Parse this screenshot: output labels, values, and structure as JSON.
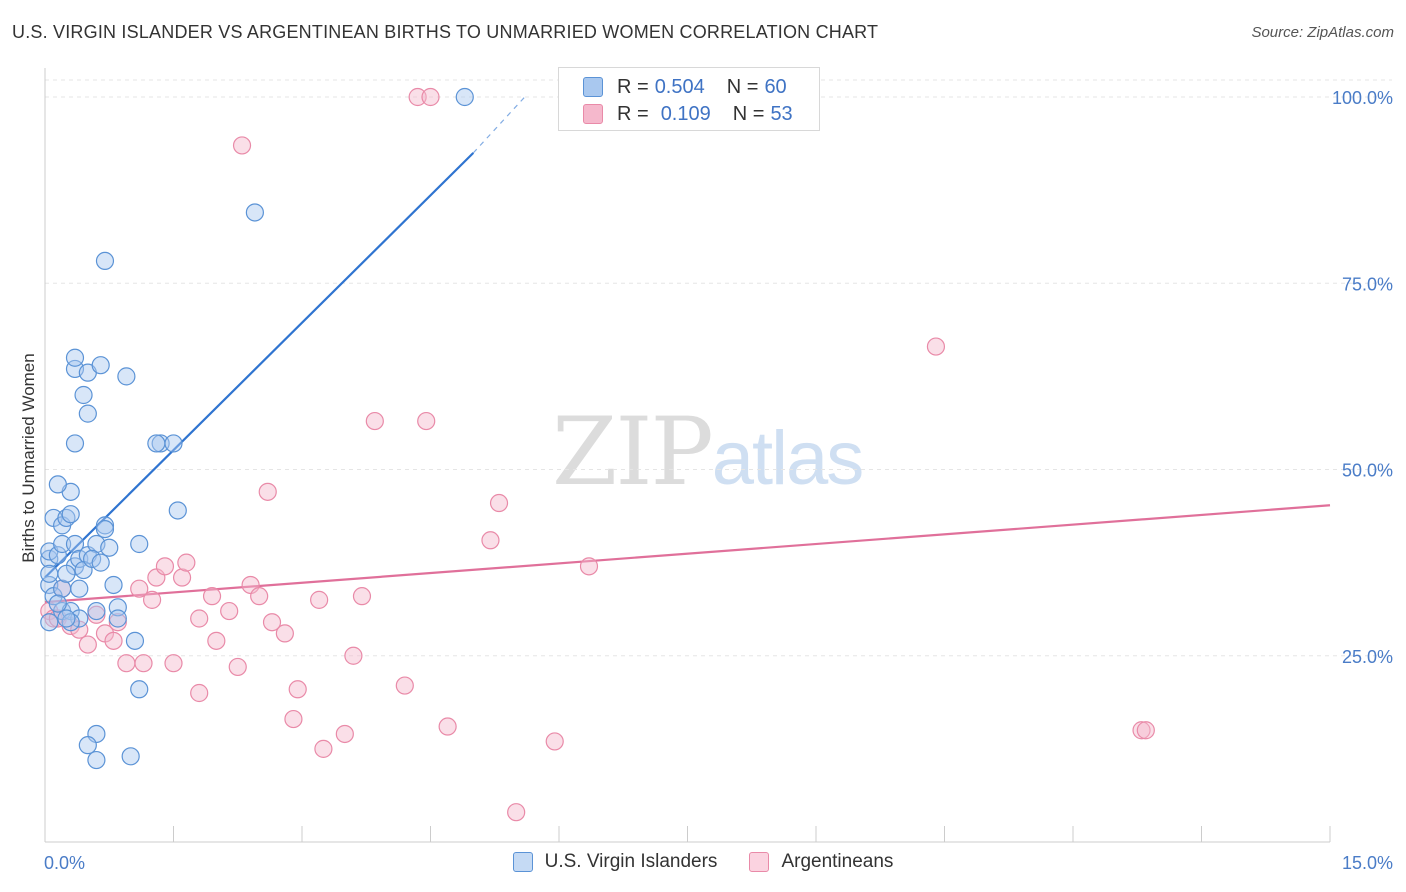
{
  "header": {
    "title": "U.S. VIRGIN ISLANDER VS ARGENTINEAN BIRTHS TO UNMARRIED WOMEN CORRELATION CHART",
    "source": "Source: ZipAtlas.com"
  },
  "watermark": {
    "part1": "ZIP",
    "part2": "atlas"
  },
  "legend": {
    "rows": [
      {
        "r_label": "R =",
        "r_value": "0.504",
        "n_label": "N =",
        "n_value": "60"
      },
      {
        "r_label": "R =",
        "r_value": "0.109",
        "n_label": "N =",
        "n_value": "53"
      }
    ]
  },
  "bottom_legend": {
    "items": [
      {
        "label": "U.S. Virgin Islanders"
      },
      {
        "label": "Argentineans"
      }
    ]
  },
  "colors": {
    "blue_fill": "#a9c8ef",
    "blue_stroke": "#5b93d6",
    "blue_line": "#2f74d0",
    "pink_fill": "#f5b8cc",
    "pink_stroke": "#e98aa8",
    "pink_line": "#e0709a",
    "grid": "#e5e5e5",
    "tick_text": "#4a7cc7"
  },
  "chart_data": {
    "type": "scatter",
    "title": "U.S. VIRGIN ISLANDER VS ARGENTINEAN BIRTHS TO UNMARRIED WOMEN CORRELATION CHART",
    "xlabel": "",
    "ylabel": "Births to Unmarried Women",
    "xlim": [
      0,
      15
    ],
    "ylim": [
      0,
      100
    ],
    "x_ticks": [
      "0.0%",
      "15.0%"
    ],
    "y_ticks": [
      {
        "value": 25,
        "label": "25.0%"
      },
      {
        "value": 50,
        "label": "50.0%"
      },
      {
        "value": 75,
        "label": "75.0%"
      },
      {
        "value": 100,
        "label": "100.0%"
      }
    ],
    "grid": true,
    "legend_position": "top-center",
    "series": [
      {
        "name": "U.S. Virgin Islanders",
        "R": 0.504,
        "N": 60,
        "trend": {
          "x": [
            0,
            5.0
          ],
          "y": [
            35.5,
            92.5
          ],
          "dashed_to": [
            5.6,
            100
          ]
        },
        "points": [
          [
            0.05,
            38
          ],
          [
            0.05,
            39
          ],
          [
            0.05,
            34.5
          ],
          [
            0.05,
            36
          ],
          [
            0.1,
            33
          ],
          [
            0.15,
            38.5
          ],
          [
            0.1,
            43.5
          ],
          [
            0.2,
            40
          ],
          [
            0.2,
            42.5
          ],
          [
            0.25,
            43.5
          ],
          [
            0.3,
            44
          ],
          [
            0.3,
            47
          ],
          [
            0.15,
            48
          ],
          [
            0.35,
            40
          ],
          [
            0.35,
            37
          ],
          [
            0.2,
            34
          ],
          [
            0.4,
            38
          ],
          [
            0.5,
            38.5
          ],
          [
            0.6,
            40
          ],
          [
            0.7,
            42.5
          ],
          [
            0.75,
            39.5
          ],
          [
            0.7,
            42
          ],
          [
            0.35,
            53.5
          ],
          [
            0.5,
            57.5
          ],
          [
            0.45,
            60
          ],
          [
            0.35,
            63.5
          ],
          [
            0.5,
            63
          ],
          [
            0.35,
            65
          ],
          [
            0.65,
            64
          ],
          [
            0.95,
            62.5
          ],
          [
            1.35,
            53.5
          ],
          [
            1.5,
            53.5
          ],
          [
            1.3,
            53.5
          ],
          [
            0.7,
            78
          ],
          [
            1.55,
            44.5
          ],
          [
            2.45,
            84.5
          ],
          [
            4.9,
            100
          ],
          [
            0.2,
            31
          ],
          [
            0.3,
            31
          ],
          [
            0.4,
            30
          ],
          [
            0.6,
            31
          ],
          [
            0.85,
            31.5
          ],
          [
            0.85,
            30
          ],
          [
            0.8,
            34.5
          ],
          [
            1.1,
            40
          ],
          [
            1.05,
            27
          ],
          [
            1.1,
            20.5
          ],
          [
            0.6,
            14.5
          ],
          [
            0.5,
            13
          ],
          [
            0.6,
            11
          ],
          [
            1.0,
            11.5
          ],
          [
            0.3,
            29.5
          ],
          [
            0.4,
            34
          ],
          [
            0.25,
            30
          ],
          [
            0.05,
            29.5
          ],
          [
            0.15,
            32
          ],
          [
            0.45,
            36.5
          ],
          [
            0.55,
            38
          ],
          [
            0.65,
            37.5
          ],
          [
            0.25,
            36
          ]
        ]
      },
      {
        "name": "Argentineans",
        "R": 0.109,
        "N": 53,
        "trend": {
          "x": [
            0,
            15
          ],
          "y": [
            32.2,
            45.2
          ]
        },
        "points": [
          [
            0.05,
            31
          ],
          [
            0.1,
            30
          ],
          [
            0.15,
            30
          ],
          [
            0.2,
            34
          ],
          [
            0.3,
            29
          ],
          [
            0.4,
            28.5
          ],
          [
            0.5,
            26.5
          ],
          [
            0.6,
            30.5
          ],
          [
            0.7,
            28
          ],
          [
            0.8,
            27
          ],
          [
            0.85,
            29.5
          ],
          [
            0.95,
            24
          ],
          [
            1.1,
            34
          ],
          [
            1.15,
            24
          ],
          [
            1.25,
            32.5
          ],
          [
            1.3,
            35.5
          ],
          [
            1.4,
            37
          ],
          [
            1.5,
            24
          ],
          [
            1.6,
            35.5
          ],
          [
            1.65,
            37.5
          ],
          [
            1.8,
            30
          ],
          [
            1.8,
            20
          ],
          [
            1.95,
            33
          ],
          [
            2.0,
            27
          ],
          [
            2.15,
            31
          ],
          [
            2.25,
            23.5
          ],
          [
            2.3,
            93.5
          ],
          [
            2.4,
            34.5
          ],
          [
            2.5,
            33
          ],
          [
            2.6,
            47
          ],
          [
            2.65,
            29.5
          ],
          [
            2.8,
            28
          ],
          [
            2.9,
            16.5
          ],
          [
            2.95,
            20.5
          ],
          [
            3.2,
            32.5
          ],
          [
            3.25,
            12.5
          ],
          [
            3.5,
            14.5
          ],
          [
            3.6,
            25
          ],
          [
            3.7,
            33
          ],
          [
            3.85,
            56.5
          ],
          [
            4.2,
            21
          ],
          [
            4.35,
            100
          ],
          [
            4.45,
            56.5
          ],
          [
            4.5,
            100
          ],
          [
            4.7,
            15.5
          ],
          [
            5.2,
            40.5
          ],
          [
            5.3,
            45.5
          ],
          [
            5.5,
            4
          ],
          [
            5.95,
            13.5
          ],
          [
            6.35,
            37
          ],
          [
            10.4,
            66.5
          ],
          [
            12.8,
            15
          ],
          [
            12.85,
            15
          ]
        ]
      }
    ]
  }
}
